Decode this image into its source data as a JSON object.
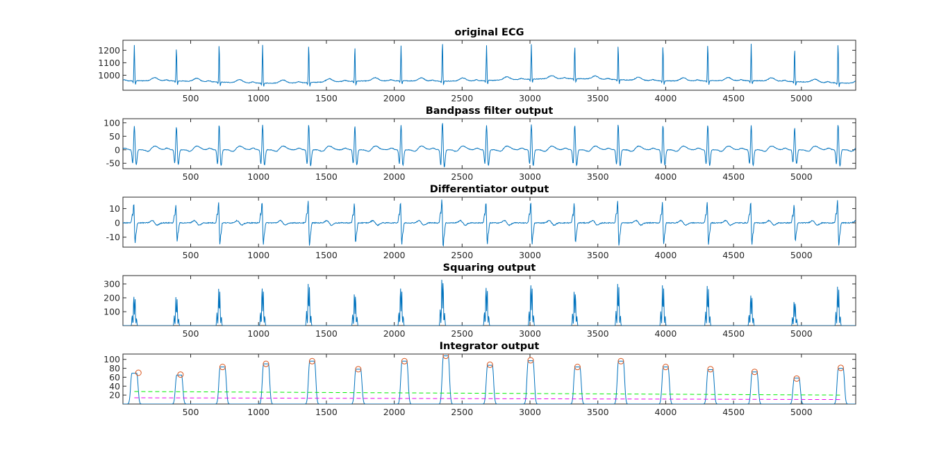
{
  "figure": {
    "background": "#ffffff",
    "colors": {
      "signal": "#0072bd",
      "peak_marker": "#d95319",
      "threshold_green": "#00ee00",
      "threshold_magenta": "#ee00ee",
      "axis": "#262626"
    }
  },
  "chart_data": [
    {
      "type": "line",
      "title": "original ECG",
      "xlim": [
        1,
        5400
      ],
      "ylim": [
        880,
        1280
      ],
      "xticks": [
        500,
        1000,
        1500,
        2000,
        2500,
        3000,
        3500,
        4000,
        4500,
        5000
      ],
      "yticks": [
        1000,
        1100,
        1200
      ],
      "series": [
        {
          "kind": "ecg_raw",
          "beats": [
            {
              "x": 85,
              "peak": 1245
            },
            {
              "x": 395,
              "peak": 1225
            },
            {
              "x": 710,
              "peak": 1255
            },
            {
              "x": 1030,
              "peak": 1245
            },
            {
              "x": 1370,
              "peak": 1250
            },
            {
              "x": 1710,
              "peak": 1240
            },
            {
              "x": 2050,
              "peak": 1240
            },
            {
              "x": 2355,
              "peak": 1280
            },
            {
              "x": 2680,
              "peak": 1245
            },
            {
              "x": 3010,
              "peak": 1250
            },
            {
              "x": 3330,
              "peak": 1245
            },
            {
              "x": 3650,
              "peak": 1250
            },
            {
              "x": 3980,
              "peak": 1245
            },
            {
              "x": 4310,
              "peak": 1260
            },
            {
              "x": 4630,
              "peak": 1255
            },
            {
              "x": 4950,
              "peak": 1220
            },
            {
              "x": 5270,
              "peak": 1265
            }
          ]
        }
      ]
    },
    {
      "type": "line",
      "title": "Bandpass filter output",
      "xlim": [
        1,
        5400
      ],
      "ylim": [
        -70,
        115
      ],
      "xticks": [
        500,
        1000,
        1500,
        2000,
        2500,
        3000,
        3500,
        4000,
        4500,
        5000
      ],
      "yticks": [
        -50,
        0,
        50,
        100
      ],
      "series": [
        {
          "kind": "bandpass",
          "beats": [
            {
              "x": 85,
              "peak": 95
            },
            {
              "x": 395,
              "peak": 92
            },
            {
              "x": 710,
              "peak": 100
            },
            {
              "x": 1030,
              "peak": 98
            },
            {
              "x": 1370,
              "peak": 100
            },
            {
              "x": 1710,
              "peak": 95
            },
            {
              "x": 2050,
              "peak": 98
            },
            {
              "x": 2355,
              "peak": 110
            },
            {
              "x": 2680,
              "peak": 98
            },
            {
              "x": 3010,
              "peak": 100
            },
            {
              "x": 3330,
              "peak": 98
            },
            {
              "x": 3650,
              "peak": 102
            },
            {
              "x": 3980,
              "peak": 98
            },
            {
              "x": 4310,
              "peak": 100
            },
            {
              "x": 4630,
              "peak": 98
            },
            {
              "x": 4950,
              "peak": 88
            },
            {
              "x": 5270,
              "peak": 102
            }
          ]
        }
      ]
    },
    {
      "type": "line",
      "title": "Differentiator output",
      "xlim": [
        1,
        5400
      ],
      "ylim": [
        -17,
        18
      ],
      "xticks": [
        500,
        1000,
        1500,
        2000,
        2500,
        3000,
        3500,
        4000,
        4500,
        5000
      ],
      "yticks": [
        -10,
        0,
        10
      ],
      "series": [
        {
          "kind": "derivative",
          "beats": [
            {
              "x": 85,
              "peak": 14
            },
            {
              "x": 395,
              "peak": 13
            },
            {
              "x": 710,
              "peak": 15
            },
            {
              "x": 1030,
              "peak": 15
            },
            {
              "x": 1370,
              "peak": 16
            },
            {
              "x": 1710,
              "peak": 14
            },
            {
              "x": 2050,
              "peak": 15
            },
            {
              "x": 2355,
              "peak": 17
            },
            {
              "x": 2680,
              "peak": 15
            },
            {
              "x": 3010,
              "peak": 15
            },
            {
              "x": 3330,
              "peak": 14
            },
            {
              "x": 3650,
              "peak": 16
            },
            {
              "x": 3980,
              "peak": 15
            },
            {
              "x": 4310,
              "peak": 15
            },
            {
              "x": 4630,
              "peak": 15
            },
            {
              "x": 4950,
              "peak": 13
            },
            {
              "x": 5270,
              "peak": 16
            }
          ]
        }
      ]
    },
    {
      "type": "line",
      "title": "Squaring output",
      "xlim": [
        1,
        5400
      ],
      "ylim": [
        0,
        360
      ],
      "xticks": [
        500,
        1000,
        1500,
        2000,
        2500,
        3000,
        3500,
        4000,
        4500,
        5000
      ],
      "yticks": [
        100,
        200,
        300
      ],
      "series": [
        {
          "kind": "squared",
          "beats": [
            {
              "x": 85,
              "peak": 225
            },
            {
              "x": 395,
              "peak": 205
            },
            {
              "x": 710,
              "peak": 265
            },
            {
              "x": 1030,
              "peak": 290
            },
            {
              "x": 1370,
              "peak": 300
            },
            {
              "x": 1710,
              "peak": 245
            },
            {
              "x": 2050,
              "peak": 290
            },
            {
              "x": 2355,
              "peak": 360
            },
            {
              "x": 2680,
              "peak": 295
            },
            {
              "x": 3010,
              "peak": 315
            },
            {
              "x": 3330,
              "peak": 265
            },
            {
              "x": 3650,
              "peak": 300
            },
            {
              "x": 3980,
              "peak": 290
            },
            {
              "x": 4310,
              "peak": 285
            },
            {
              "x": 4630,
              "peak": 235
            },
            {
              "x": 4950,
              "peak": 185
            },
            {
              "x": 5270,
              "peak": 280
            }
          ]
        }
      ]
    },
    {
      "type": "line",
      "title": "Integrator output",
      "xlim": [
        1,
        5400
      ],
      "ylim": [
        0,
        112
      ],
      "xticks": [
        500,
        1000,
        1500,
        2000,
        2500,
        3000,
        3500,
        4000,
        4500,
        5000
      ],
      "yticks": [
        20,
        40,
        60,
        80,
        100
      ],
      "series": [
        {
          "kind": "integrated",
          "beats": [
            {
              "x": 85,
              "peak": 69
            },
            {
              "x": 415,
              "peak": 65
            },
            {
              "x": 735,
              "peak": 83
            },
            {
              "x": 1055,
              "peak": 90
            },
            {
              "x": 1395,
              "peak": 96
            },
            {
              "x": 1735,
              "peak": 78
            },
            {
              "x": 2075,
              "peak": 96
            },
            {
              "x": 2380,
              "peak": 108
            },
            {
              "x": 2705,
              "peak": 87
            },
            {
              "x": 3005,
              "peak": 97
            },
            {
              "x": 3350,
              "peak": 83
            },
            {
              "x": 3670,
              "peak": 96
            },
            {
              "x": 4000,
              "peak": 83
            },
            {
              "x": 4330,
              "peak": 77
            },
            {
              "x": 4655,
              "peak": 72
            },
            {
              "x": 4965,
              "peak": 58
            },
            {
              "x": 5290,
              "peak": 80
            }
          ]
        },
        {
          "kind": "peak_markers",
          "points": [
            [
              115,
              70
            ],
            [
              425,
              66
            ],
            [
              735,
              83
            ],
            [
              1055,
              90
            ],
            [
              1395,
              96
            ],
            [
              1735,
              78
            ],
            [
              2075,
              96
            ],
            [
              2380,
              108
            ],
            [
              2705,
              88
            ],
            [
              3005,
              98
            ],
            [
              3350,
              83
            ],
            [
              3670,
              96
            ],
            [
              4000,
              83
            ],
            [
              4330,
              78
            ],
            [
              4655,
              72
            ],
            [
              4965,
              57
            ],
            [
              5290,
              81
            ]
          ]
        },
        {
          "kind": "threshold_green",
          "x": [
            85,
            5300
          ],
          "y": [
            28,
            20
          ]
        },
        {
          "kind": "threshold_magenta",
          "x": [
            85,
            5300
          ],
          "y": [
            14,
            10
          ]
        }
      ]
    }
  ]
}
